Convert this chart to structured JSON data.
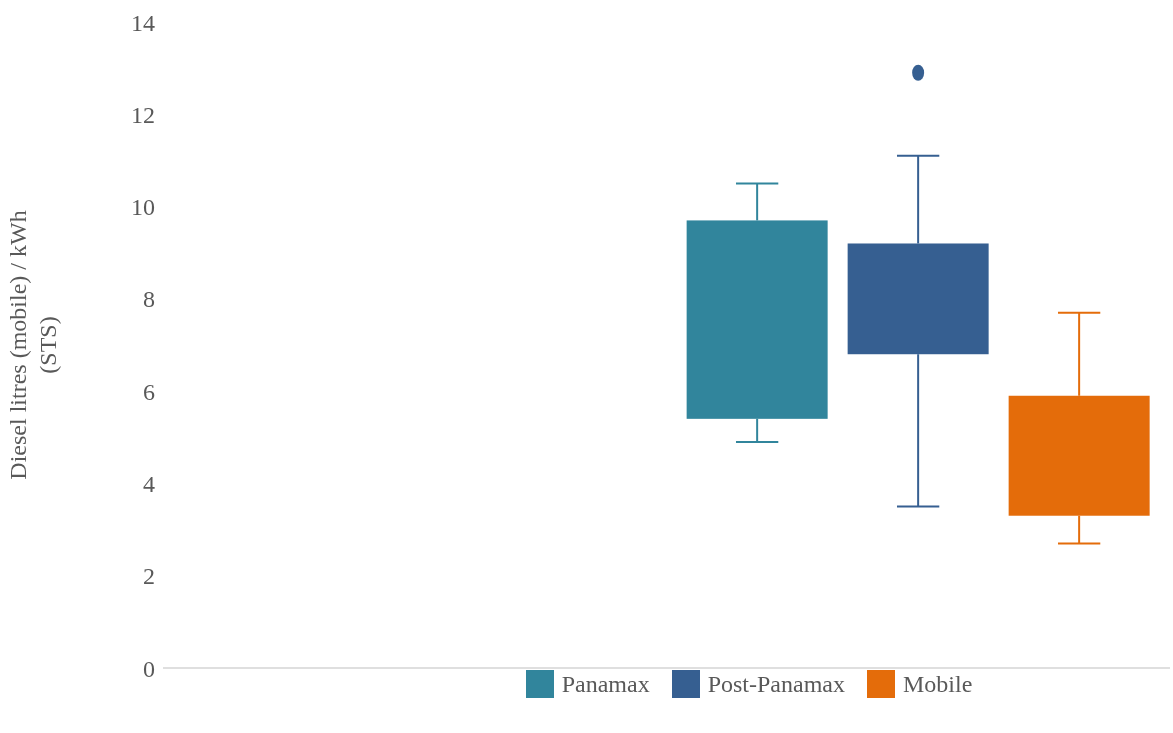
{
  "chart_data": {
    "type": "box",
    "ylabel": "Diesel litres (mobile) / kWh (STS)",
    "categories": [
      null,
      null
    ],
    "ylim": [
      0,
      14
    ],
    "yticks": [
      0,
      2,
      4,
      6,
      8,
      10,
      12,
      14
    ],
    "grid": false,
    "legend": "bottom",
    "series": [
      {
        "name": "Panamax",
        "color": "#31859c",
        "boxes": [
          null,
          {
            "low": 4.9,
            "q1": 5.4,
            "q3": 9.7,
            "high": 10.5
          }
        ]
      },
      {
        "name": "Post-Panamax",
        "color": "#365f91",
        "boxes": [
          null,
          {
            "low": 3.5,
            "q1": 6.8,
            "q3": 9.2,
            "high": 11.1,
            "outliers": [
              12.9
            ]
          }
        ]
      },
      {
        "name": "Mobile",
        "color": "#e46c0a",
        "boxes": [
          null,
          {
            "low": 2.7,
            "q1": 3.3,
            "q3": 5.9,
            "high": 7.7
          }
        ]
      }
    ]
  }
}
